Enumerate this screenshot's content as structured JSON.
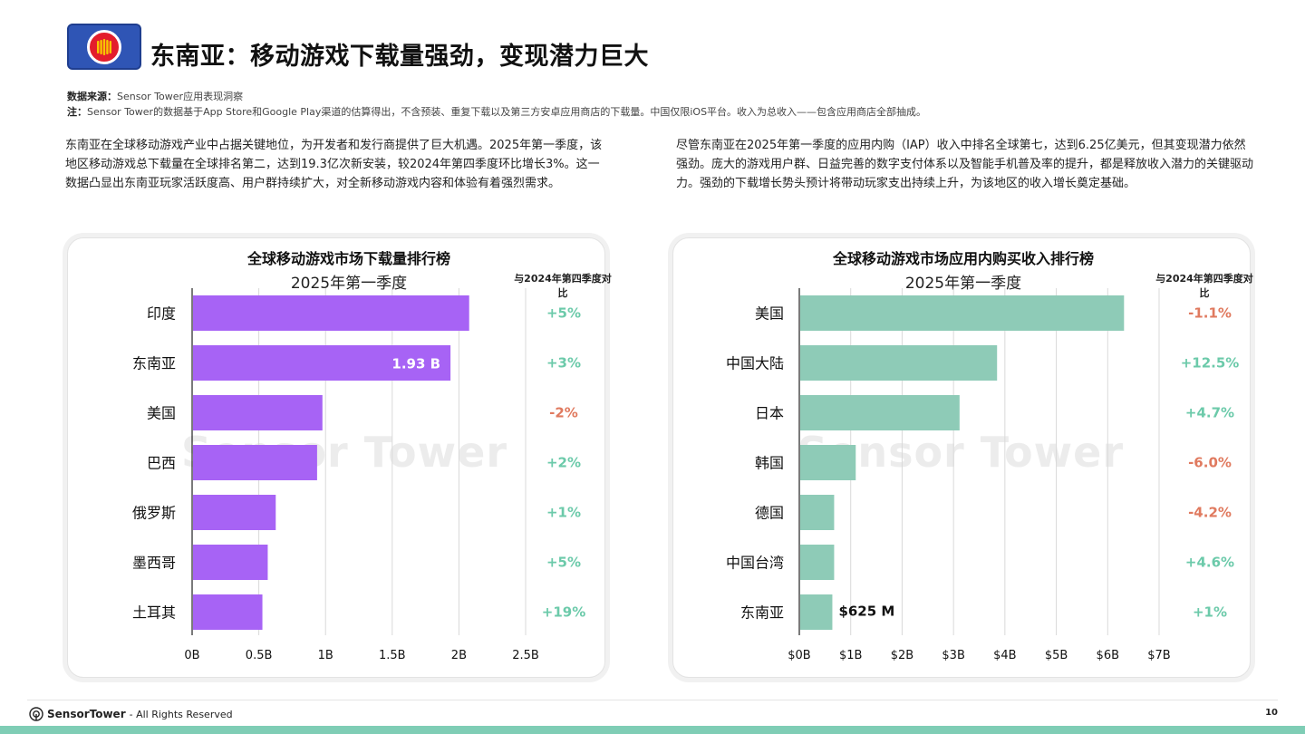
{
  "header": {
    "title": "东南亚：移动游戏下载量强劲，变现潜力巨大"
  },
  "source": {
    "label": "数据来源：",
    "text": "Sensor Tower应用表现洞察",
    "note_label": "注：",
    "note_text": "Sensor Tower的数据基于App Store和Google Play渠道的估算得出，不含预装、重复下载以及第三方安卓应用商店的下载量。中国仅限iOS平台。收入为总收入——包含应用商店全部抽成。"
  },
  "paragraphs": {
    "left": "东南亚在全球移动游戏产业中占据关键地位，为开发者和发行商提供了巨大机遇。2025年第一季度，该地区移动游戏总下载量在全球排名第二，达到19.3亿次新安装，较2024年第四季度环比增长3%。这一数据凸显出东南亚玩家活跃度高、用户群持续扩大，对全新移动游戏内容和体验有着强烈需求。",
    "right": "尽管东南亚在2025年第一季度的应用内购（IAP）收入中排名全球第七，达到6.25亿美元，但其变现潜力依然强劲。庞大的游戏用户群、日益完善的数字支付体系以及智能手机普及率的提升，都是释放收入潜力的关键驱动力。强劲的下载增长势头预计将带动玩家支出持续上升，为该地区的收入增长奠定基础。"
  },
  "chart_data": [
    {
      "type": "bar",
      "orientation": "horizontal",
      "title": "全球移动游戏市场下载量排行榜",
      "subtitle": "2025年第一季度",
      "yoy_header": "与2024年第四季度对比",
      "categories": [
        "印度",
        "东南亚",
        "美国",
        "巴西",
        "俄罗斯",
        "墨西哥",
        "土耳其"
      ],
      "values": [
        2.07,
        1.93,
        0.97,
        0.93,
        0.62,
        0.56,
        0.52
      ],
      "unit": "B",
      "data_labels": [
        "",
        "1.93 B",
        "",
        "",
        "",
        "",
        ""
      ],
      "yoy": [
        "+5%",
        "+3%",
        "-2%",
        "+2%",
        "+1%",
        "+5%",
        "+19%"
      ],
      "xlim": [
        0,
        2.5
      ],
      "xticks": [
        "0B",
        "0.5B",
        "1B",
        "1.5B",
        "2B",
        "2.5B"
      ],
      "bar_color": "#a763f5",
      "grid": true
    },
    {
      "type": "bar",
      "orientation": "horizontal",
      "title": "全球移动游戏市场应用内购买收入排行榜",
      "subtitle": "2025年第一季度",
      "yoy_header": "与2024年第四季度对比",
      "categories": [
        "美国",
        "中国大陆",
        "日本",
        "韩国",
        "德国",
        "中国台湾",
        "东南亚"
      ],
      "values": [
        6.3,
        3.83,
        3.1,
        1.08,
        0.66,
        0.66,
        0.625
      ],
      "unit": "$B",
      "data_labels": [
        "",
        "",
        "",
        "",
        "",
        "",
        "$625 M"
      ],
      "yoy": [
        "-1.1%",
        "+12.5%",
        "+4.7%",
        "-6.0%",
        "-4.2%",
        "+4.6%",
        "+1%"
      ],
      "xlim": [
        0,
        7
      ],
      "xticks": [
        "$0B",
        "$1B",
        "$2B",
        "$3B",
        "$4B",
        "$5B",
        "$6B",
        "$7B"
      ],
      "bar_color": "#8ecbb7",
      "grid": true
    }
  ],
  "colors": {
    "positive": "#6ccaaa",
    "negative": "#e07a5f",
    "accent_strip": "#7fcdb5"
  },
  "watermark": "Sensor Tower",
  "footer": {
    "brand": "SensorTower",
    "rights": "- All Rights Reserved",
    "page": "10"
  }
}
